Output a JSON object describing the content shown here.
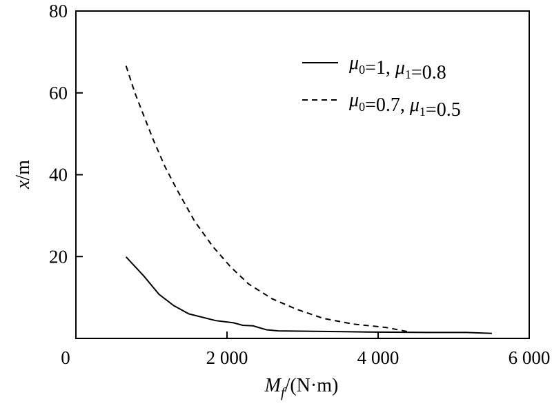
{
  "chart_data": {
    "type": "line",
    "title": "",
    "xlabel": "M_f/(N·m)",
    "xlabel_main": "M",
    "xlabel_sub": "f",
    "xlabel_rest": "/(N·m)",
    "ylabel": "x/m",
    "ylabel_var": "x",
    "ylabel_rest": "/m",
    "xlim": [
      0,
      6000
    ],
    "ylim": [
      0,
      80
    ],
    "x_ticks": [
      0,
      2000,
      4000,
      6000
    ],
    "x_tick_labels": [
      "0",
      "2 000",
      "4 000",
      "6 000"
    ],
    "y_ticks": [
      20,
      40,
      60,
      80
    ],
    "y_tick_labels": [
      "20",
      "40",
      "60",
      "80"
    ],
    "grid": false,
    "legend_position": "top-right",
    "series": [
      {
        "name": "μ0=1, μ1=0.8",
        "style": "solid",
        "color": "#000000",
        "x": [
          664,
          901,
          1099,
          1296,
          1494,
          1850,
          2087,
          2206,
          2344,
          2522,
          2680,
          3866,
          4656,
          5170,
          5506
        ],
        "y": [
          19.9,
          15.2,
          10.8,
          8.0,
          6.0,
          4.35,
          3.8,
          3.2,
          3.07,
          2.1,
          1.84,
          1.56,
          1.45,
          1.45,
          1.23
        ]
      },
      {
        "name": "μ0=0.7, μ1=0.5",
        "style": "dashed",
        "color": "#000000",
        "x": [
          664,
          783,
          901,
          1020,
          1178,
          1336,
          1573,
          1810,
          2047,
          2285,
          2601,
          2917,
          3273,
          3668,
          4103,
          4419
        ],
        "y": [
          66.6,
          59.9,
          54.3,
          48.7,
          42.0,
          36.4,
          28.6,
          22.5,
          17.5,
          13.3,
          9.65,
          7.14,
          4.9,
          3.5,
          2.68,
          1.56
        ]
      }
    ]
  }
}
